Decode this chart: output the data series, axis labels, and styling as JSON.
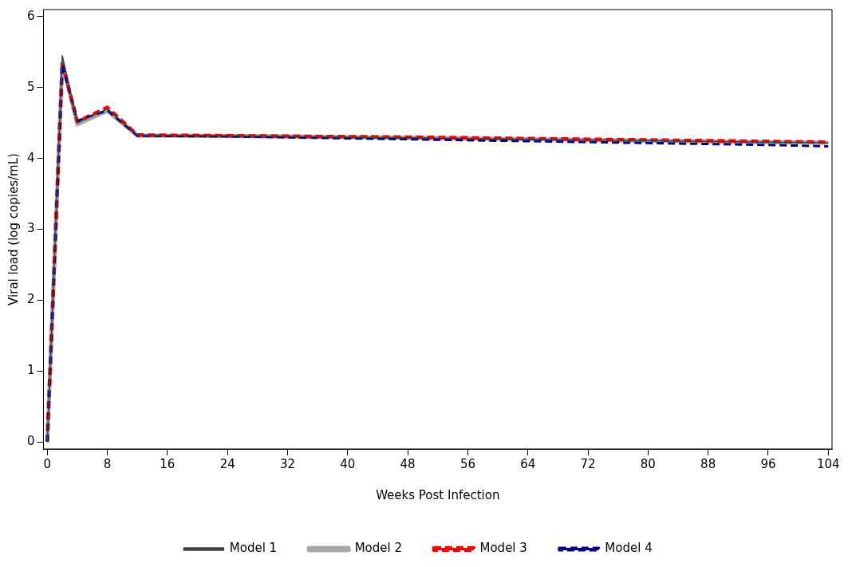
{
  "chart_data": {
    "type": "line",
    "xlabel": "Weeks Post Infection",
    "ylabel": "Viral load (log copies/mL)",
    "x": [
      0,
      2,
      4,
      8,
      12,
      24,
      48,
      72,
      96,
      104
    ],
    "xlim": [
      -0.5,
      104.5
    ],
    "xticks": [
      0,
      8,
      16,
      24,
      32,
      40,
      48,
      56,
      64,
      72,
      80,
      88,
      96,
      104
    ],
    "ylim": [
      -0.1,
      6.1
    ],
    "yticks": [
      0,
      1,
      2,
      3,
      4,
      5,
      6
    ],
    "grid": false,
    "legend": "bottom",
    "marker": "none",
    "series": [
      {
        "name": "Model 1",
        "color": "#404040",
        "line_style": "solid",
        "values": [
          0,
          5.45,
          4.5,
          4.7,
          4.33,
          4.32,
          4.29,
          4.26,
          4.23,
          4.22
        ]
      },
      {
        "name": "Model 2",
        "color": "#a8a8a8",
        "line_style": "solid",
        "values": [
          0,
          5.35,
          4.48,
          4.67,
          4.32,
          4.32,
          4.29,
          4.26,
          4.23,
          4.22
        ]
      },
      {
        "name": "Model 3",
        "color": "#ff0000",
        "line_style": "dashed",
        "values": [
          0,
          5.35,
          4.52,
          4.72,
          4.33,
          4.32,
          4.3,
          4.27,
          4.24,
          4.23
        ]
      },
      {
        "name": "Model 4",
        "color": "#00008b",
        "line_style": "dashed",
        "values": [
          0,
          5.33,
          4.53,
          4.68,
          4.32,
          4.31,
          4.27,
          4.23,
          4.19,
          4.17
        ]
      }
    ]
  }
}
